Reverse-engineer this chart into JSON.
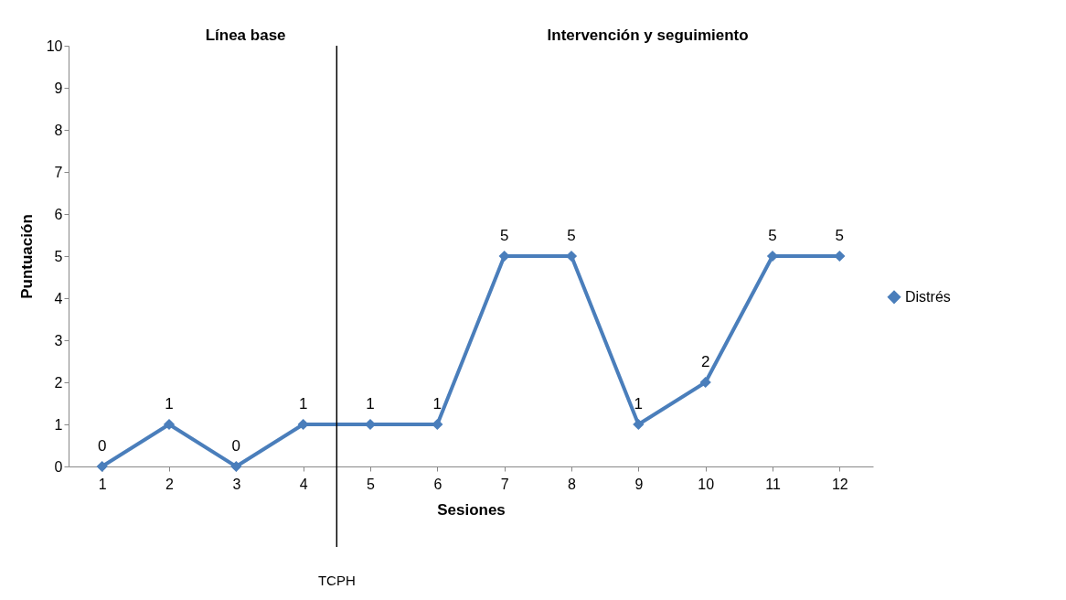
{
  "chart_data": {
    "type": "line",
    "xlabel": "Sesiones",
    "ylabel": "Puntuación",
    "x": [
      1,
      2,
      3,
      4,
      5,
      6,
      7,
      8,
      9,
      10,
      11,
      12
    ],
    "xlim": [
      0.5,
      12.5
    ],
    "xticks": [
      1,
      2,
      3,
      4,
      5,
      6,
      7,
      8,
      9,
      10,
      11,
      12
    ],
    "ylim": [
      0,
      10
    ],
    "yticks": [
      0,
      1,
      2,
      3,
      4,
      5,
      6,
      7,
      8,
      9,
      10
    ],
    "series": [
      {
        "name": "Distrés",
        "color": "#4a7ebb",
        "values": [
          0,
          1,
          0,
          1,
          1,
          1,
          5,
          5,
          1,
          2,
          5,
          5
        ]
      }
    ],
    "data_labels": true,
    "marker": "diamond",
    "line_style": "solid",
    "grid": false,
    "legend": "right",
    "ref_lines": [
      {
        "axis": "x",
        "value": 4.5,
        "label": "TCPH",
        "color": "#000000"
      }
    ],
    "annotations": [
      "Línea base",
      "Intervención y seguimiento"
    ]
  }
}
